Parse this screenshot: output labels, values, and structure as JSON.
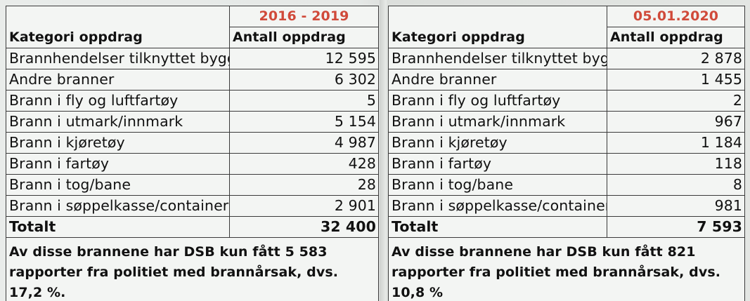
{
  "left_table": {
    "period": "2016 - 2019",
    "header": {
      "category": "Kategori oppdrag",
      "count": "Antall oppdrag"
    },
    "rows": [
      {
        "category": "Brannhendelser tilknyttet bygg",
        "count": "12 595"
      },
      {
        "category": "Andre branner",
        "count": "6 302"
      },
      {
        "category": "Brann i fly og luftfartøy",
        "count": "5"
      },
      {
        "category": "Brann i utmark/innmark",
        "count": "5 154"
      },
      {
        "category": "Brann i kjøretøy",
        "count": "4 987"
      },
      {
        "category": "Brann i fartøy",
        "count": "428"
      },
      {
        "category": "Brann i tog/bane",
        "count": "28"
      },
      {
        "category": "Brann i søppelkasse/container",
        "count": "2 901"
      }
    ],
    "total": {
      "label": "Totalt",
      "count": "32 400"
    },
    "note": "Av disse brannene har DSB kun fått 5 583 rapporter fra politiet med brannårsak, dvs. 17,2 %."
  },
  "right_table": {
    "period": "05.01.2020",
    "header": {
      "category": "Kategori oppdrag",
      "count": "Antall oppdrag"
    },
    "rows": [
      {
        "category": "Brannhendelser tilknyttet bygg",
        "count": "2 878"
      },
      {
        "category": "Andre branner",
        "count": "1 455"
      },
      {
        "category": "Brann i fly og luftfartøy",
        "count": "2"
      },
      {
        "category": "Brann i utmark/innmark",
        "count": "967"
      },
      {
        "category": "Brann i kjøretøy",
        "count": "1 184"
      },
      {
        "category": "Brann i fartøy",
        "count": "118"
      },
      {
        "category": "Brann i tog/bane",
        "count": "8"
      },
      {
        "category": "Brann i søppelkasse/container",
        "count": "981"
      }
    ],
    "total": {
      "label": "Totalt",
      "count": "7 593"
    },
    "note": "Av disse brannene har DSB kun fått 821 rapporter fra politiet med brannårsak, dvs. 10,8 %"
  },
  "colors": {
    "period_accent": "#d04a3a",
    "text": "#111111",
    "border": "#3a3a3a"
  }
}
